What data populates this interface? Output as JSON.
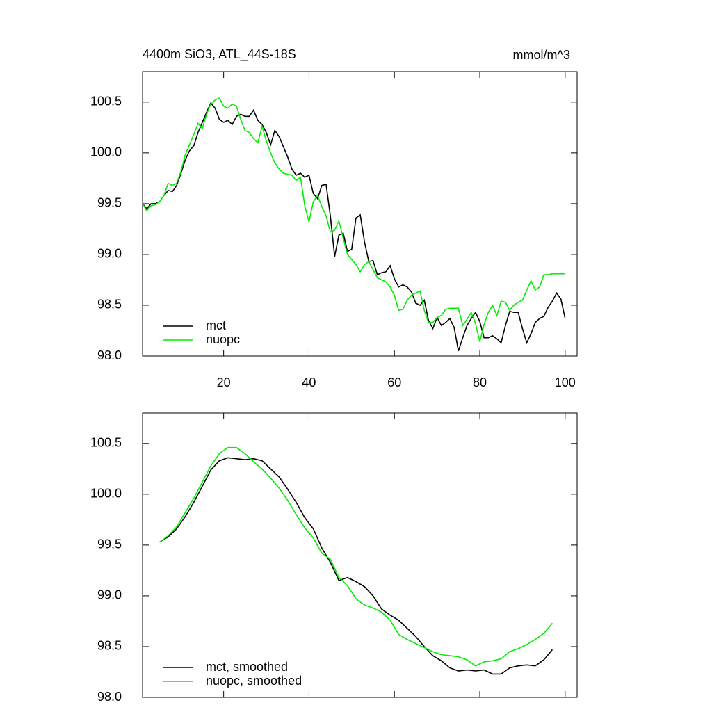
{
  "chart_data": [
    {
      "type": "line",
      "title": "4400m SiO3, ATL_44S-18S",
      "units": "mmol/m^3",
      "x": [
        1,
        2,
        3,
        4,
        5,
        6,
        7,
        8,
        9,
        10,
        11,
        12,
        13,
        14,
        15,
        16,
        17,
        18,
        19,
        20,
        21,
        22,
        23,
        24,
        25,
        26,
        27,
        28,
        29,
        30,
        31,
        32,
        33,
        34,
        35,
        36,
        37,
        38,
        39,
        40,
        41,
        42,
        43,
        44,
        45,
        46,
        47,
        48,
        49,
        50,
        51,
        52,
        53,
        54,
        55,
        56,
        57,
        58,
        59,
        60,
        61,
        62,
        63,
        64,
        65,
        66,
        67,
        68,
        69,
        70,
        71,
        72,
        73,
        74,
        75,
        76,
        77,
        78,
        79,
        80,
        81,
        82,
        83,
        84,
        85,
        86,
        87,
        88,
        89,
        90,
        91,
        92,
        93,
        94,
        95,
        96,
        97,
        98,
        99,
        100
      ],
      "series": [
        {
          "name": "mct",
          "color": "#000000",
          "values": [
            99.5,
            99.45,
            99.5,
            99.5,
            99.52,
            99.58,
            99.63,
            99.62,
            99.68,
            99.8,
            99.93,
            100.02,
            100.07,
            100.2,
            100.3,
            100.4,
            100.49,
            100.44,
            100.33,
            100.3,
            100.32,
            100.28,
            100.36,
            100.38,
            100.36,
            100.36,
            100.42,
            100.32,
            100.28,
            100.2,
            100.08,
            100.22,
            100.16,
            100.06,
            99.96,
            99.84,
            99.78,
            99.8,
            99.76,
            99.78,
            99.6,
            99.55,
            99.68,
            99.69,
            99.38,
            98.98,
            99.19,
            99.21,
            99.03,
            99.05,
            99.36,
            99.39,
            99.12,
            98.93,
            98.94,
            98.8,
            98.82,
            98.83,
            98.89,
            98.76,
            98.68,
            98.7,
            98.68,
            98.63,
            98.52,
            98.5,
            98.55,
            98.35,
            98.27,
            98.38,
            98.3,
            98.33,
            98.37,
            98.28,
            98.05,
            98.18,
            98.3,
            98.37,
            98.43,
            98.34,
            98.18,
            98.18,
            98.2,
            98.17,
            98.13,
            98.3,
            98.44,
            98.43,
            98.43,
            98.27,
            98.13,
            98.22,
            98.33,
            98.37,
            98.39,
            98.48,
            98.54,
            98.62,
            98.56,
            98.37
          ]
        },
        {
          "name": "nuopc",
          "color": "#00ee00",
          "values": [
            99.5,
            99.43,
            99.48,
            99.49,
            99.52,
            99.58,
            99.7,
            99.68,
            99.7,
            99.82,
            99.98,
            100.08,
            100.18,
            100.29,
            100.24,
            100.38,
            100.48,
            100.52,
            100.54,
            100.46,
            100.44,
            100.48,
            100.46,
            100.33,
            100.22,
            100.2,
            100.14,
            100.1,
            100.26,
            100.12,
            100.0,
            99.9,
            99.84,
            99.8,
            99.79,
            99.78,
            99.73,
            99.76,
            99.48,
            99.32,
            99.52,
            99.58,
            99.47,
            99.38,
            99.22,
            99.24,
            99.33,
            99.16,
            99.0,
            98.95,
            98.9,
            98.83,
            98.9,
            98.93,
            98.85,
            98.77,
            98.75,
            98.73,
            98.68,
            98.6,
            98.45,
            98.46,
            98.55,
            98.6,
            98.62,
            98.64,
            98.45,
            98.33,
            98.33,
            98.38,
            98.4,
            98.46,
            98.47,
            98.47,
            98.47,
            98.3,
            98.36,
            98.43,
            98.32,
            98.14,
            98.31,
            98.43,
            98.5,
            98.4,
            98.54,
            98.53,
            98.45,
            98.5,
            98.53,
            98.55,
            98.65,
            98.74,
            98.65,
            98.68,
            98.8,
            98.8,
            98.81,
            98.81,
            98.81,
            98.81
          ]
        }
      ],
      "xlim": [
        1,
        102.8
      ],
      "ylim": [
        98.0,
        100.8
      ],
      "xticks": [
        20,
        40,
        60,
        80,
        100
      ],
      "yticks": [
        {
          "value": 98.0,
          "label": "98.0"
        },
        98.5,
        {
          "value": 99.0,
          "label": "99.0"
        },
        99.5,
        {
          "value": 100.0,
          "label": "100.0"
        },
        100.5
      ],
      "xtick_labels": true,
      "legend": "lower left"
    },
    {
      "type": "line",
      "x": [
        5,
        7,
        9,
        11,
        13,
        15,
        17,
        19,
        21,
        23,
        25,
        27,
        29,
        31,
        33,
        35,
        37,
        39,
        41,
        43,
        45,
        47,
        49,
        51,
        53,
        55,
        57,
        59,
        61,
        63,
        65,
        67,
        69,
        71,
        73,
        75,
        77,
        79,
        81,
        83,
        85,
        87,
        89,
        91,
        93,
        95,
        97
      ],
      "series": [
        {
          "name": "mct, smoothed",
          "color": "#000000",
          "values": [
            99.53,
            99.58,
            99.66,
            99.78,
            99.92,
            100.08,
            100.24,
            100.33,
            100.36,
            100.35,
            100.34,
            100.35,
            100.33,
            100.25,
            100.17,
            100.05,
            99.92,
            99.77,
            99.66,
            99.47,
            99.33,
            99.15,
            99.18,
            99.14,
            99.09,
            99.0,
            98.87,
            98.81,
            98.76,
            98.68,
            98.6,
            98.5,
            98.41,
            98.36,
            98.29,
            98.26,
            98.27,
            98.26,
            98.27,
            98.23,
            98.23,
            98.29,
            98.31,
            98.32,
            98.31,
            98.37,
            98.47
          ]
        },
        {
          "name": "nuopc, smoothed",
          "color": "#00ee00",
          "values": [
            99.53,
            99.59,
            99.68,
            99.82,
            99.96,
            100.12,
            100.28,
            100.4,
            100.46,
            100.46,
            100.4,
            100.32,
            100.25,
            100.16,
            100.06,
            99.94,
            99.8,
            99.67,
            99.57,
            99.42,
            99.36,
            99.18,
            99.1,
            98.97,
            98.91,
            98.88,
            98.84,
            98.76,
            98.62,
            98.57,
            98.53,
            98.49,
            98.45,
            98.42,
            98.41,
            98.4,
            98.37,
            98.31,
            98.35,
            98.36,
            98.38,
            98.45,
            98.48,
            98.52,
            98.57,
            98.63,
            98.73
          ]
        }
      ],
      "xlim": [
        1,
        102.8
      ],
      "ylim": [
        98.0,
        100.8
      ],
      "xticks": [
        20,
        40,
        60,
        80,
        100
      ],
      "yticks": [
        {
          "value": 98.0,
          "label": "98.0"
        },
        98.5,
        {
          "value": 99.0,
          "label": "99.0"
        },
        99.5,
        {
          "value": 100.0,
          "label": "100.0"
        },
        100.5
      ],
      "xtick_labels": false,
      "legend": "lower left"
    }
  ]
}
